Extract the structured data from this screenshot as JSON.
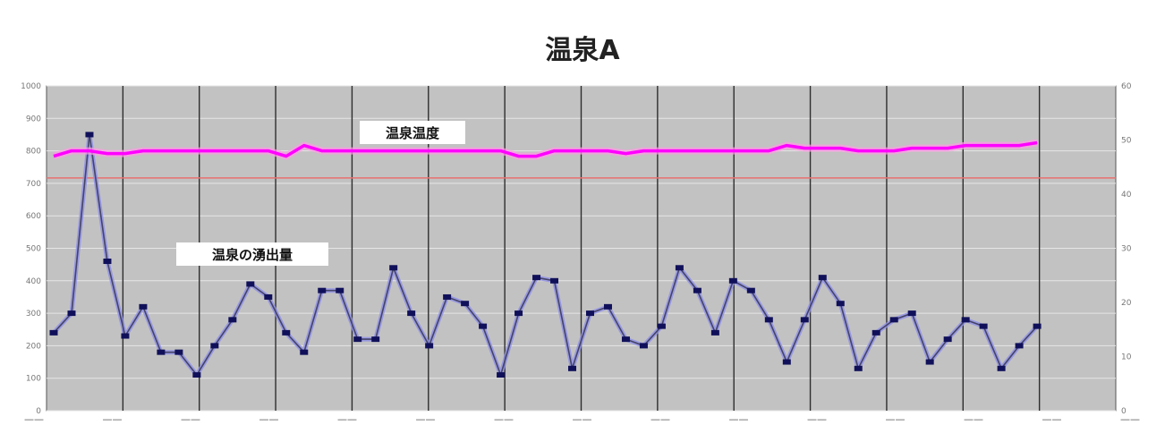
{
  "chart_data": {
    "type": "line",
    "title": "温泉A",
    "xlabel": "",
    "ylabel": "",
    "grid": true,
    "legend": "none",
    "y_left_range": [
      0,
      1000
    ],
    "y_right_range": [
      0,
      60
    ],
    "y_left_ticks": [
      0,
      100,
      200,
      300,
      400,
      500,
      600,
      700,
      800,
      900,
      1000
    ],
    "y_right_ticks": [
      0,
      10,
      20,
      30,
      40,
      50,
      60
    ],
    "x_count": 60,
    "series": [
      {
        "axis": "left",
        "color": "#0000a0",
        "values": [
          240,
          300,
          850,
          460,
          230,
          320,
          180,
          180,
          110,
          200,
          280,
          390,
          350,
          240,
          180,
          370,
          370,
          220,
          220,
          440,
          300,
          200,
          350,
          330,
          260,
          110,
          300,
          410,
          400,
          130,
          300,
          320,
          220,
          200,
          260,
          440,
          370,
          240,
          400,
          370,
          280,
          150,
          280,
          410,
          330,
          130,
          240,
          280,
          300,
          150,
          220,
          280,
          260,
          130,
          200,
          260
        ]
      },
      {
        "axis": "right",
        "color": "#ff00ff",
        "values": [
          47,
          48,
          48,
          47.5,
          47.5,
          48,
          48,
          48,
          48,
          48,
          48,
          48,
          48,
          47,
          49,
          48,
          48,
          48,
          48,
          48,
          48,
          48,
          48,
          48,
          48,
          48,
          47,
          47,
          48,
          48,
          48,
          48,
          47.5,
          48,
          48,
          48,
          48,
          48,
          48,
          48,
          48,
          49,
          48.5,
          48.5,
          48.5,
          48,
          48,
          48,
          48.5,
          48.5,
          48.5,
          49,
          49,
          49,
          49,
          49.5
        ]
      }
    ],
    "reference_line": {
      "axis": "right",
      "value": 43,
      "color": "#e87070"
    },
    "annotations": [
      {
        "text": "温泉温度"
      },
      {
        "text": "温泉の湧出量"
      }
    ]
  }
}
